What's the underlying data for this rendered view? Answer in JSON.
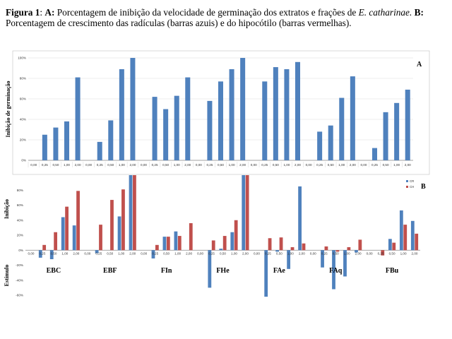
{
  "caption": {
    "fig": "Figura 1",
    "a_tag": "A:",
    "a_text": "Porcentagem de inibição da velocidade de germinação dos extratos e frações de ",
    "species": "E. catharinae.",
    "b_tag": "B:",
    "b_text": "Porcentagem de crescimento das radículas (barras azuis) e do hipocótilo (barras vermelhas)."
  },
  "colors": {
    "blue": "#4F81BD",
    "red": "#C0504D",
    "grid": "#d9d9d9",
    "axis": "#888888"
  },
  "chart_data": [
    {
      "type": "bar",
      "panel_label": "A",
      "ylabel": "Inibição de germinação",
      "ylim": [
        0,
        100
      ],
      "yticks": [
        "0%",
        "20%",
        "40%",
        "60%",
        "80%",
        "100%"
      ],
      "grid": true,
      "categories": [
        "0,00",
        "0,25",
        "0,50",
        "1,00",
        "2,00",
        "0,00",
        "0,25",
        "0,50",
        "1,00",
        "2,00",
        "0,00",
        "0,25",
        "0,50",
        "1,00",
        "2,00",
        "0,00",
        "0,25",
        "0,50",
        "1,00",
        "2,00",
        "0,00",
        "0,25",
        "0,50",
        "1,00",
        "2,00",
        "0,00",
        "0,25",
        "0,50",
        "1,00",
        "2,00",
        "0,00",
        "0,25",
        "0,50",
        "1,00",
        "2,00"
      ],
      "series": [
        {
          "color": "blue",
          "values": [
            0,
            25,
            32,
            38,
            81,
            0,
            18,
            39,
            89,
            100,
            0,
            62,
            50,
            63,
            81,
            0,
            58,
            77,
            89,
            100,
            0,
            77,
            91,
            89,
            96,
            0,
            28,
            34,
            61,
            82,
            0,
            12,
            47,
            56,
            69
          ]
        }
      ]
    },
    {
      "type": "bar",
      "panel_label": "B",
      "ylabel_top": "Inibição",
      "ylabel_bottom": "Estímulo",
      "ylim": [
        -60,
        100
      ],
      "yticks": [
        "-60%",
        "-40%",
        "-20%",
        "0%",
        "20%",
        "40%",
        "60%",
        "80%"
      ],
      "legend": [
        "CR",
        "CH"
      ],
      "legend_position": "top-right",
      "group_labels": [
        "EBC",
        "EBF",
        "FIn",
        "FHe",
        "FAe",
        "FAq",
        "FBu"
      ],
      "categories": [
        "0,00",
        "0,25",
        "0,50",
        "1,00",
        "2,00",
        "0,00",
        "0,25",
        "0,50",
        "1,00",
        "2,00",
        "0,00",
        "0,25",
        "0,50",
        "1,00",
        "2,00",
        "0,00",
        "0,25",
        "0,50",
        "1,00",
        "2,00",
        "0,00",
        "0,25",
        "0,50",
        "1,00",
        "2,00",
        "0,00",
        "0,25",
        "0,50",
        "1,00",
        "2,00",
        "0,00",
        "0,25",
        "0,50",
        "1,00",
        "2,00"
      ],
      "series": [
        {
          "name": "CR",
          "color": "blue",
          "values": [
            0,
            -10,
            -12,
            44,
            33,
            0,
            -4,
            0,
            45,
            100,
            0,
            -11,
            18,
            25,
            0,
            0,
            -50,
            2,
            24,
            100,
            0,
            -62,
            -2,
            -25,
            85,
            0,
            -23,
            -52,
            -35,
            -3,
            0,
            0,
            15,
            53,
            39
          ]
        },
        {
          "name": "CH",
          "color": "red",
          "values": [
            0,
            7,
            24,
            58,
            79,
            0,
            34,
            67,
            81,
            100,
            0,
            7,
            18,
            19,
            36,
            0,
            13,
            19,
            40,
            100,
            0,
            16,
            17,
            4,
            9,
            0,
            5,
            -2,
            4,
            14,
            0,
            -7,
            10,
            34,
            22
          ]
        }
      ]
    }
  ]
}
